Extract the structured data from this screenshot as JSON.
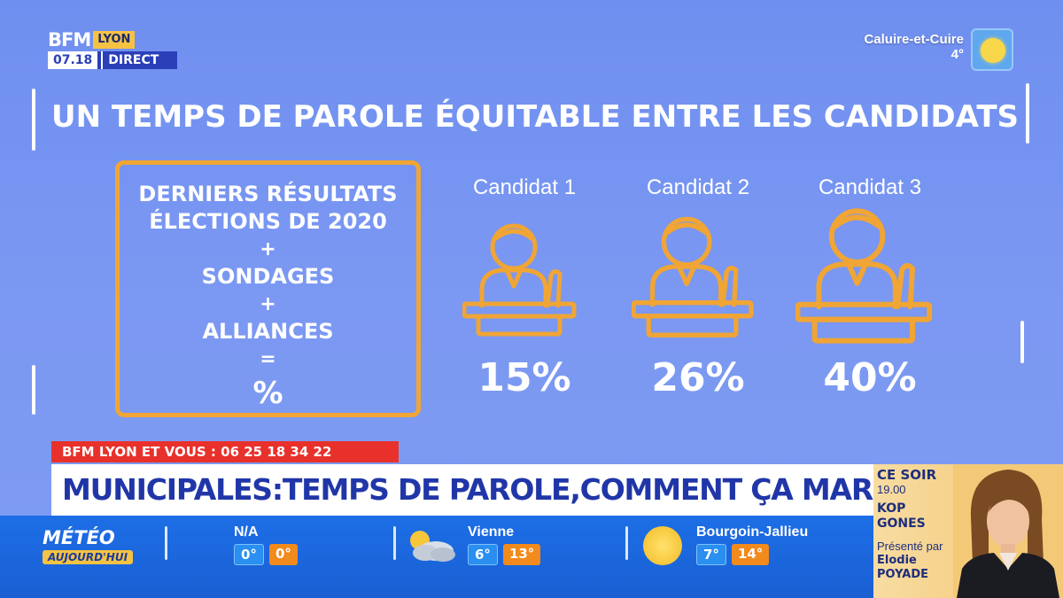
{
  "logo": {
    "brand": "BFM",
    "city": "LYON",
    "time": "07.18",
    "live": "DIRECT"
  },
  "top_weather": {
    "city": "Caluire-et-Cuire",
    "temp": "4°",
    "icon": "sun-icon"
  },
  "title": "UN TEMPS DE PAROLE ÉQUITABLE ENTRE LES CANDIDATS",
  "formula": {
    "line1": "DERNIERS RÉSULTATS",
    "line2": "ÉLECTIONS DE 2020",
    "plus1": "+",
    "line3": "SONDAGES",
    "plus2": "+",
    "line4": "ALLIANCES",
    "equals": "=",
    "result": "%"
  },
  "candidates": [
    {
      "name": "Candidat 1",
      "share": "15%",
      "icon": "speaker-at-podium-icon"
    },
    {
      "name": "Candidat 2",
      "share": "26%",
      "icon": "speaker-at-podium-icon"
    },
    {
      "name": "Candidat 3",
      "share": "40%",
      "icon": "speaker-at-podium-icon"
    }
  ],
  "lower_third": {
    "phone_tag": "BFM LYON ET VOUS : 06 25 18 34 22",
    "headline": "MUNICIPALES:TEMPS DE PAROLE,COMMENT ÇA MARCHE?"
  },
  "weather_strip": {
    "label_top": "MÉTÉO",
    "label_bottom": "AUJOURD'HUI",
    "cities": [
      {
        "name": "N/A",
        "min": "0°",
        "max": "0°",
        "icon": ""
      },
      {
        "name": "Vienne",
        "min": "6°",
        "max": "13°",
        "icon": "cloud-sun-icon"
      },
      {
        "name": "Bourgoin-Jallieu",
        "min": "7°",
        "max": "14°",
        "icon": "sun-icon"
      }
    ]
  },
  "tonight": {
    "label": "CE SOIR",
    "time": "19.00",
    "show": "KOP GONES",
    "presented_by": "Présenté par",
    "host": "Elodie POYADE"
  },
  "colors": {
    "background": "#7593f1",
    "accent_orange": "#f0a535",
    "headline_blue": "#2036a8",
    "tag_red": "#e8312b",
    "weather_blue": "#1d6ee6"
  }
}
